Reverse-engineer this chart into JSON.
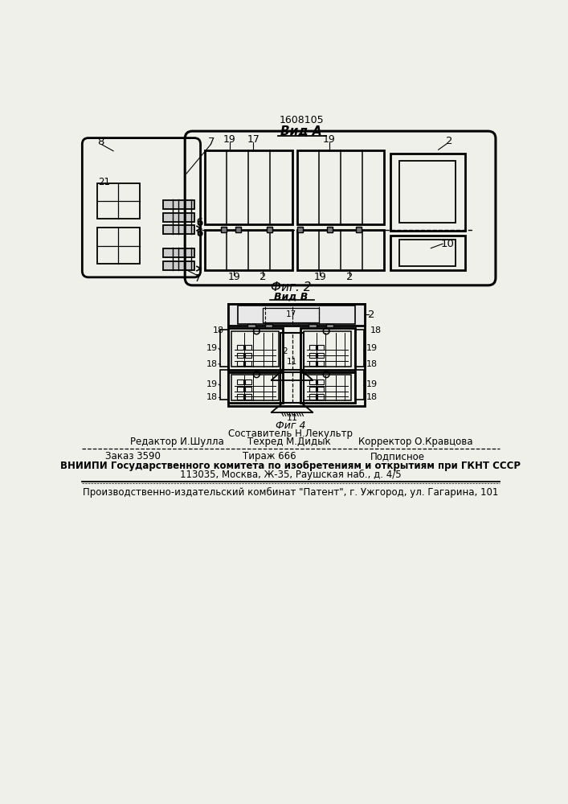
{
  "bg_color": "#f0f0eb",
  "patent_number": "1608105",
  "fig1_title": "Вид А",
  "fig2_label": "Фиг. 2",
  "fig2_subtitle": "Вид В",
  "fig4_label": "Фиг 4",
  "footer_line1_left": "Составитель Н.Лекультр",
  "footer_line2_col1": "Редактор И.Шулла",
  "footer_line2_col2": "Техред М.Дидык",
  "footer_line2_col3": "Корректор О.Кравцова",
  "footer_line3_col1": "Заказ 3590",
  "footer_line3_col2": "Тираж 666",
  "footer_line3_col3": "Подписное",
  "footer_line4": "ВНИИПИ Государственного комитета по изобретениям и открытиям при ГКНТ СССР",
  "footer_line5": "113035, Москва, Ж-35, Раушская наб., д. 4/5",
  "footer_line6": "Производственно-издательский комбинат \"Патент\", г. Ужгород, ул. Гагарина, 101"
}
